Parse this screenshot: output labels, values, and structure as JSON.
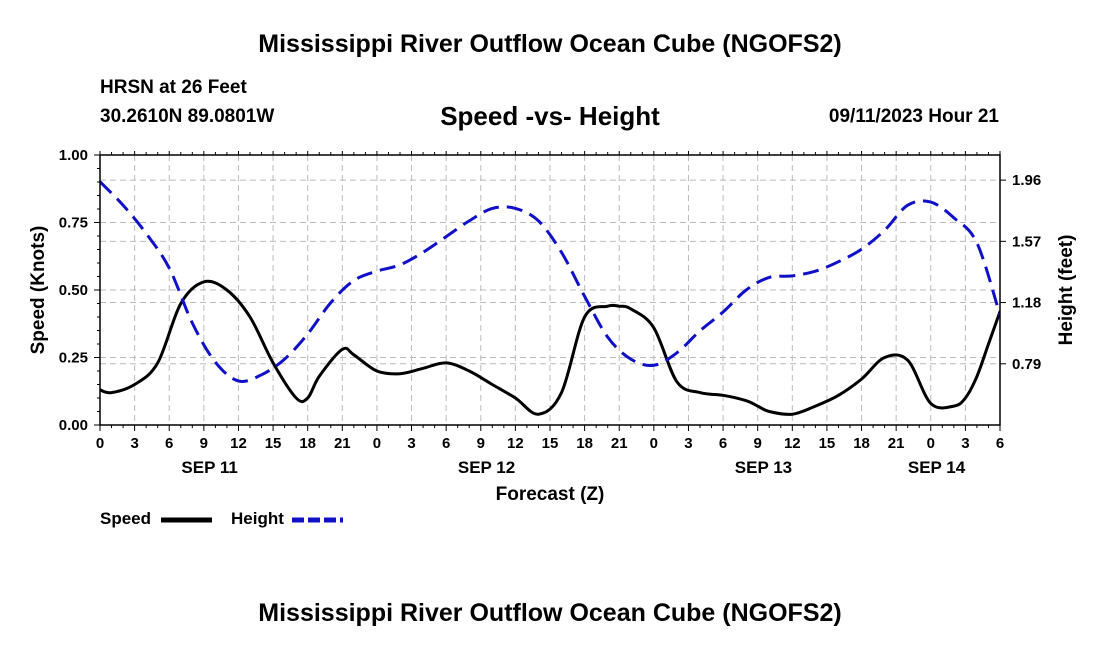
{
  "header": {
    "title": "Mississippi River Outflow Ocean Cube (NGOFS2)",
    "station": "HRSN at 26 Feet",
    "coords": "30.2610N  89.0801W",
    "subtitle": "Speed -vs- Height",
    "datetime": "09/11/2023 Hour 21"
  },
  "footer": {
    "title": "Mississippi River Outflow Ocean Cube (NGOFS2)"
  },
  "legend": {
    "speed_label": "Speed",
    "height_label": "Height"
  },
  "colors": {
    "speed": "#000000",
    "height": "#1010c8",
    "grid": "#bbbbbb"
  },
  "chart_data": {
    "type": "line",
    "xlabel": "Forecast (Z)",
    "ylabel_left": "Speed (Knots)",
    "ylabel_right": "Height (feet)",
    "x_hours_range": [
      0,
      78
    ],
    "x_tick_labels": [
      "0",
      "3",
      "6",
      "9",
      "12",
      "15",
      "18",
      "21",
      "0",
      "3",
      "6",
      "9",
      "12",
      "15",
      "18",
      "21",
      "0",
      "3",
      "6",
      "9",
      "12",
      "15",
      "18",
      "21",
      "0",
      "3",
      "6"
    ],
    "date_labels": [
      {
        "label": "SEP 11",
        "hour": 9.5
      },
      {
        "label": "SEP 12",
        "hour": 33.5
      },
      {
        "label": "SEP 13",
        "hour": 57.5
      },
      {
        "label": "SEP 14",
        "hour": 72.5
      }
    ],
    "ylim_left": [
      0,
      1.0
    ],
    "yticks_left": [
      "0.00",
      "0.25",
      "0.50",
      "0.75",
      "1.00"
    ],
    "ylim_right": [
      0.4,
      2.12
    ],
    "yticks_right": [
      "0.79",
      "1.18",
      "1.57",
      "1.96"
    ],
    "series": [
      {
        "name": "Speed",
        "axis": "left",
        "style": "solid",
        "x": [
          0,
          1,
          3,
          5,
          7,
          9,
          11,
          13,
          15,
          17,
          18,
          19,
          21,
          22,
          24,
          26,
          28,
          30,
          32,
          34,
          36,
          38,
          40,
          42,
          44,
          45,
          46,
          48,
          50,
          52,
          54,
          56,
          57,
          58,
          60,
          62,
          64,
          66,
          68,
          70,
          72,
          74,
          75,
          76,
          77,
          78
        ],
        "y": [
          0.13,
          0.12,
          0.15,
          0.23,
          0.45,
          0.53,
          0.5,
          0.4,
          0.23,
          0.1,
          0.1,
          0.18,
          0.28,
          0.26,
          0.2,
          0.19,
          0.21,
          0.23,
          0.2,
          0.15,
          0.1,
          0.04,
          0.12,
          0.4,
          0.44,
          0.44,
          0.43,
          0.36,
          0.16,
          0.12,
          0.11,
          0.09,
          0.07,
          0.05,
          0.04,
          0.07,
          0.11,
          0.17,
          0.25,
          0.24,
          0.08,
          0.07,
          0.1,
          0.18,
          0.3,
          0.42
        ]
      },
      {
        "name": "Height",
        "axis": "right",
        "style": "dashed",
        "x": [
          0,
          2,
          4,
          6,
          8,
          10,
          12,
          14,
          16,
          18,
          20,
          22,
          24,
          26,
          28,
          30,
          32,
          34,
          36,
          38,
          40,
          42,
          44,
          46,
          48,
          50,
          52,
          54,
          56,
          58,
          60,
          62,
          64,
          66,
          68,
          70,
          72,
          74,
          76,
          78
        ],
        "y": [
          1.95,
          1.8,
          1.62,
          1.4,
          1.05,
          0.8,
          0.68,
          0.72,
          0.82,
          0.98,
          1.18,
          1.32,
          1.38,
          1.42,
          1.5,
          1.6,
          1.7,
          1.78,
          1.78,
          1.7,
          1.5,
          1.22,
          0.96,
          0.82,
          0.78,
          0.86,
          1.0,
          1.12,
          1.26,
          1.34,
          1.35,
          1.38,
          1.44,
          1.52,
          1.64,
          1.8,
          1.82,
          1.72,
          1.56,
          1.1
        ]
      }
    ]
  }
}
